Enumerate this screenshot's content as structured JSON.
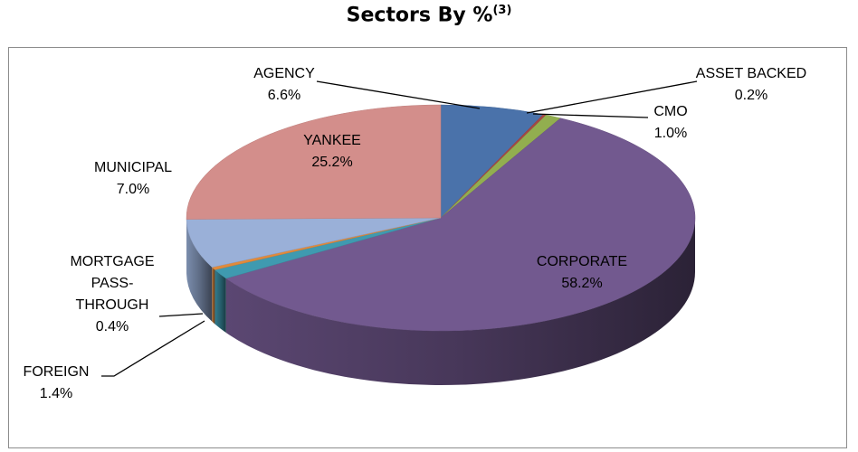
{
  "chart_data": {
    "type": "pie",
    "title": "Sectors By %",
    "title_superscript": "(3)",
    "three_d": true,
    "legend": "none",
    "slices": [
      {
        "label": "AGENCY",
        "value": 6.6,
        "value_label": "6.6%",
        "color": "#4a72aa"
      },
      {
        "label": "ASSET BACKED",
        "value": 0.2,
        "value_label": "0.2%",
        "color": "#a34744"
      },
      {
        "label": "CMO",
        "value": 1.0,
        "value_label": "1.0%",
        "color": "#92ae4f"
      },
      {
        "label": "CORPORATE",
        "value": 58.2,
        "value_label": "58.2%",
        "color": "#72598f"
      },
      {
        "label": "FOREIGN",
        "value": 1.4,
        "value_label": "1.4%",
        "color": "#3f9ab0"
      },
      {
        "label": "MORTGAGE PASS-THROUGH",
        "label_lines": [
          "MORTGAGE",
          "PASS-",
          "THROUGH"
        ],
        "value": 0.4,
        "value_label": "0.4%",
        "color": "#e08a3c"
      },
      {
        "label": "MUNICIPAL",
        "value": 7.0,
        "value_label": "7.0%",
        "color": "#9ab0d8"
      },
      {
        "label": "YANKEE",
        "value": 25.2,
        "value_label": "25.2%",
        "color": "#d38e8b"
      }
    ]
  }
}
